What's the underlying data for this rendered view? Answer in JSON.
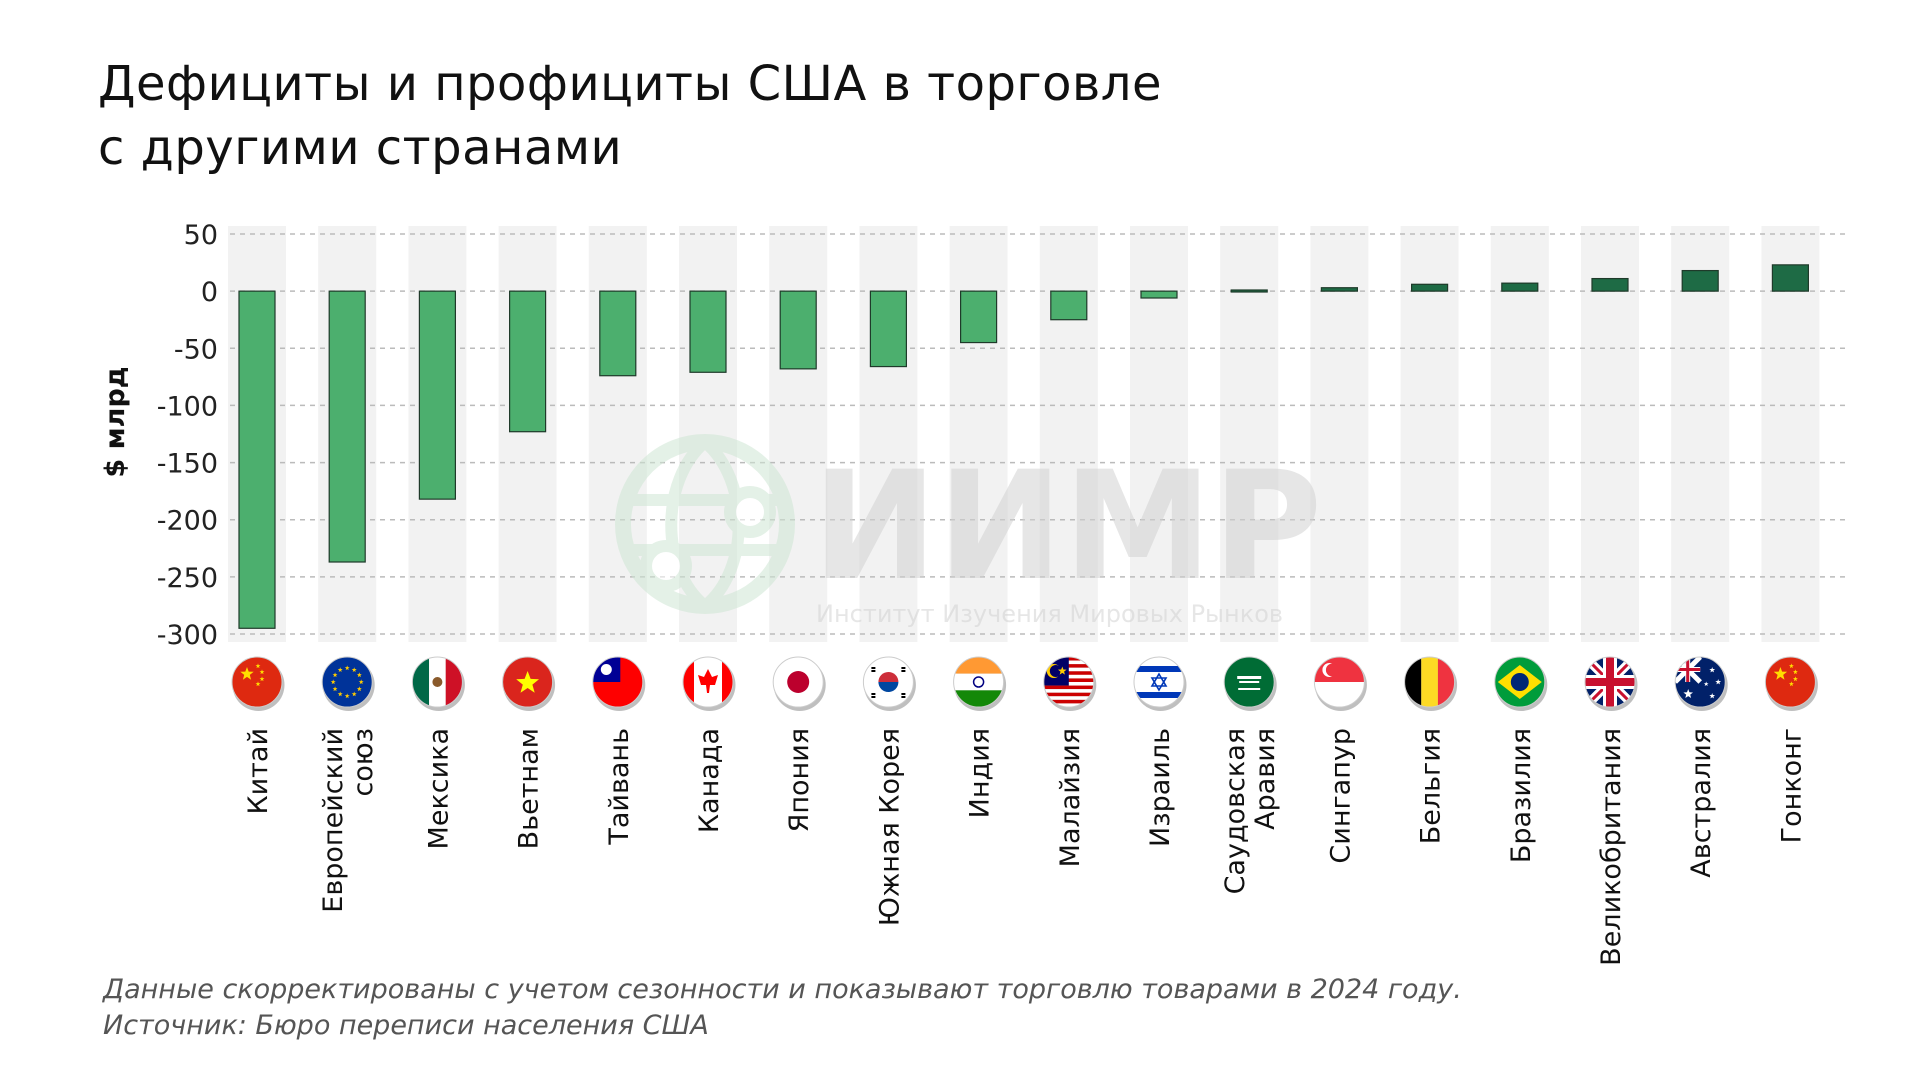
{
  "title": {
    "line1": "Дефициты и профициты США в торговле",
    "line2": "с другими странами"
  },
  "footnote": {
    "note": "Данные скорректированы с учетом сезонности и показывают торговлю товарами в 2024 году.",
    "source": "Источник: Бюро переписи населения США"
  },
  "watermark": {
    "logo_text": "ИИМР",
    "subtitle": "Институт Изучения Мировых Рынков",
    "icon": "globe-icon"
  },
  "colors": {
    "deficit": "#4caf6e",
    "surplus": "#1e6b45",
    "band": "#f2f2f2",
    "grid": "#bbbbbb"
  },
  "chart_data": {
    "type": "bar",
    "ylabel": "$ млрд",
    "ylim": [
      -300,
      50
    ],
    "yticks": [
      50,
      0,
      -50,
      -100,
      -150,
      -200,
      -250,
      -300
    ],
    "grid": true,
    "categories": [
      {
        "lines": [
          "Китай"
        ],
        "flag": "china-flag-icon"
      },
      {
        "lines": [
          "Европейский",
          "союз"
        ],
        "flag": "eu-flag-icon"
      },
      {
        "lines": [
          "Мексика"
        ],
        "flag": "mexico-flag-icon"
      },
      {
        "lines": [
          "Вьетнам"
        ],
        "flag": "vietnam-flag-icon"
      },
      {
        "lines": [
          "Тайвань"
        ],
        "flag": "taiwan-flag-icon"
      },
      {
        "lines": [
          "Канада"
        ],
        "flag": "canada-flag-icon"
      },
      {
        "lines": [
          "Япония"
        ],
        "flag": "japan-flag-icon"
      },
      {
        "lines": [
          "Южная Корея"
        ],
        "flag": "south-korea-flag-icon"
      },
      {
        "lines": [
          "Индия"
        ],
        "flag": "india-flag-icon"
      },
      {
        "lines": [
          "Малайзия"
        ],
        "flag": "malaysia-flag-icon"
      },
      {
        "lines": [
          "Израиль"
        ],
        "flag": "israel-flag-icon"
      },
      {
        "lines": [
          "Саудовская",
          "Аравия"
        ],
        "flag": "saudi-arabia-flag-icon"
      },
      {
        "lines": [
          "Сингапур"
        ],
        "flag": "singapore-flag-icon"
      },
      {
        "lines": [
          "Бельгия"
        ],
        "flag": "belgium-flag-icon"
      },
      {
        "lines": [
          "Бразилия"
        ],
        "flag": "brazil-flag-icon"
      },
      {
        "lines": [
          "Великобритания"
        ],
        "flag": "uk-flag-icon"
      },
      {
        "lines": [
          "Австралия"
        ],
        "flag": "australia-flag-icon"
      },
      {
        "lines": [
          "Гонконг"
        ],
        "flag": "hong-kong-flag-icon"
      }
    ],
    "values": [
      -295,
      -237,
      -182,
      -123,
      -74,
      -71,
      -68,
      -66,
      -45,
      -25,
      -6,
      1,
      3,
      6,
      7,
      11,
      18,
      23
    ]
  }
}
